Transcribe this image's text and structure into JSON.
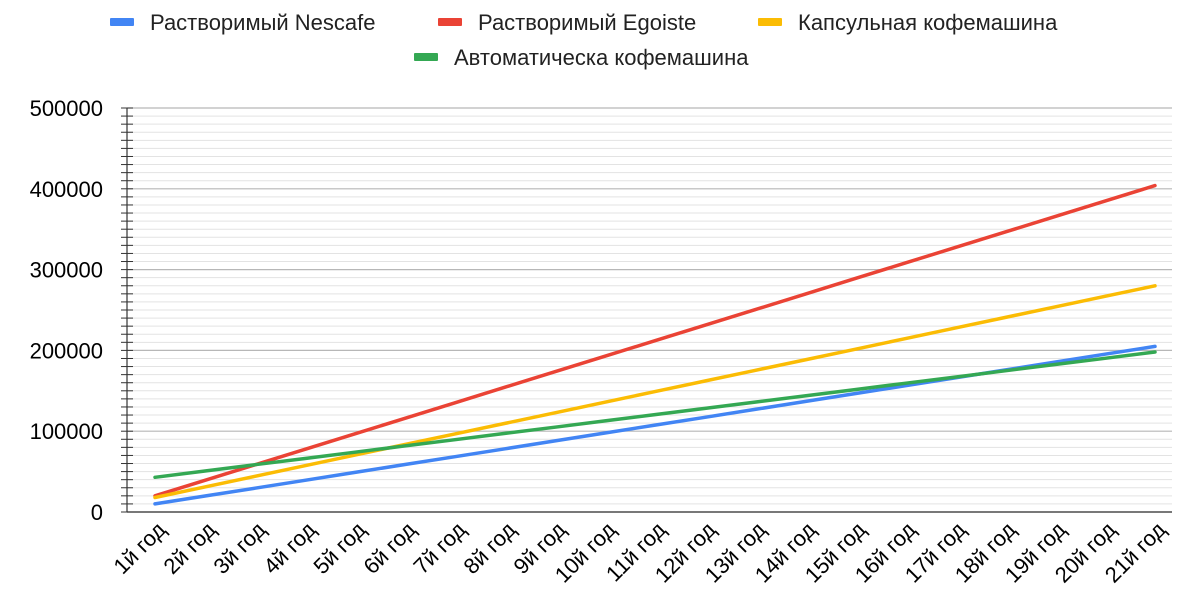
{
  "chart_data": {
    "type": "line",
    "title": "",
    "xlabel": "",
    "ylabel": "",
    "categories": [
      "1й год",
      "2й год",
      "3й год",
      "4й год",
      "5й год",
      "6й год",
      "7й год",
      "8й год",
      "9й год",
      "10й год",
      "11й год",
      "12й год",
      "13й год",
      "14й год",
      "15й год",
      "16й год",
      "17й год",
      "18й год",
      "19й год",
      "20й год",
      "21й год"
    ],
    "ylim": [
      0,
      500000
    ],
    "yticks": [
      0,
      100000,
      200000,
      300000,
      400000,
      500000
    ],
    "ytick_labels": [
      "0",
      "100000",
      "200000",
      "300000",
      "400000",
      "500000"
    ],
    "grid": true,
    "legend_position": "top",
    "series": [
      {
        "name": "Растворимый Nescafe",
        "color": "#4285f4",
        "values": [
          10000,
          19750,
          29500,
          39250,
          49000,
          58750,
          68500,
          78250,
          88000,
          97750,
          107500,
          117250,
          127000,
          136750,
          146500,
          156250,
          166000,
          175750,
          185500,
          195250,
          205000
        ]
      },
      {
        "name": "Растворимый Egoiste",
        "color": "#ea4335",
        "values": [
          20000,
          39200,
          58400,
          77600,
          96800,
          116000,
          135200,
          154400,
          173600,
          192800,
          212000,
          231200,
          250400,
          269600,
          288800,
          308000,
          327200,
          346400,
          365600,
          384800,
          404000
        ]
      },
      {
        "name": "Капсульная кофемашина",
        "color": "#fbbc04",
        "values": [
          18000,
          31100,
          44200,
          57300,
          70400,
          83500,
          96600,
          109700,
          122800,
          135900,
          149000,
          162100,
          175200,
          188300,
          201400,
          214500,
          227600,
          240700,
          253800,
          266900,
          280000
        ]
      },
      {
        "name": "Автоматическа кофемашина",
        "color": "#34a853",
        "values": [
          43000,
          50750,
          58500,
          66250,
          74000,
          81750,
          89500,
          97250,
          105000,
          112750,
          120500,
          128250,
          136000,
          143750,
          151500,
          159250,
          167000,
          174750,
          182500,
          190250,
          198000
        ]
      }
    ]
  }
}
